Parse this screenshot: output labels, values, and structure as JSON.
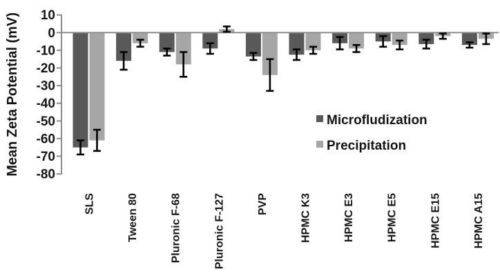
{
  "chart_data": {
    "type": "bar",
    "title": "",
    "ylabel": "Mean Zeta Potential (mV)",
    "xlabel": "",
    "ylim": [
      -80,
      10
    ],
    "ytick_step": 10,
    "yticks": [
      10,
      0,
      -10,
      -20,
      -30,
      -40,
      -50,
      -60,
      -70,
      -80
    ],
    "categories": [
      "SLS",
      "Tween 80",
      "Pluronic F-68",
      "Pluronic F-127",
      "PVP",
      "HPMC K3",
      "HPMC E3",
      "HPMC E5",
      "HPMC E15",
      "HPMC A15"
    ],
    "series": [
      {
        "name": "Microfludization",
        "color": "#595959",
        "values": [
          -65,
          -16,
          -11,
          -9,
          -13.5,
          -12.5,
          -6,
          -5,
          -6.5,
          -7
        ],
        "errors": [
          4,
          5,
          2,
          3,
          2,
          3,
          3.5,
          3,
          2.5,
          1.5
        ]
      },
      {
        "name": "Precipitation",
        "color": "#a6a6a6",
        "values": [
          -61,
          -6,
          -18,
          2,
          -24,
          -10,
          -9,
          -7,
          -2,
          -3.5
        ],
        "errors": [
          6,
          2,
          7,
          1.5,
          9,
          2,
          2,
          2.5,
          1.5,
          3
        ]
      }
    ],
    "legend_position": "center-right",
    "grid": false,
    "axis_color": "#8c8c8c",
    "error_bar_color": "#000000",
    "text_color": "#141414",
    "background_color": "#ffffff"
  }
}
